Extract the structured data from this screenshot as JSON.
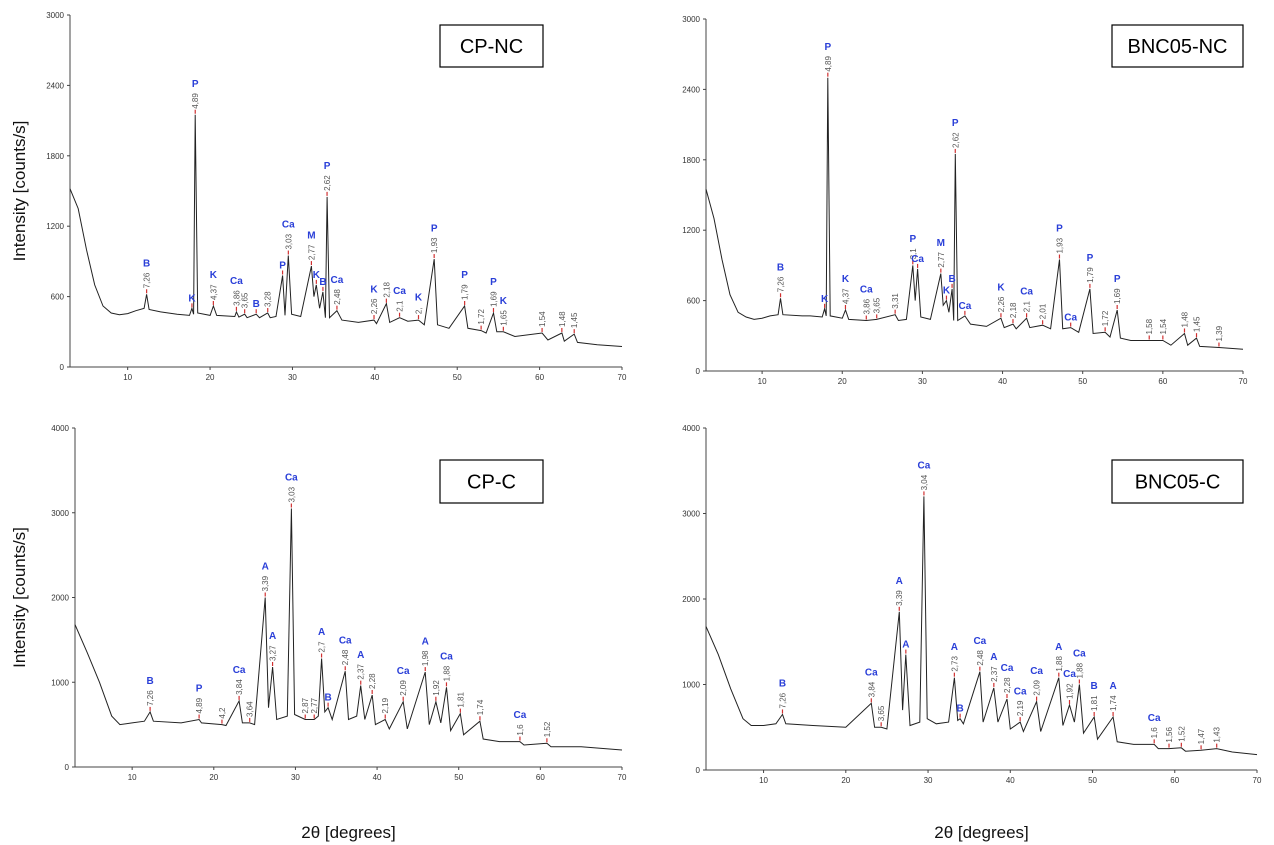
{
  "chart_data": [
    {
      "type": "line",
      "panel_label": "CP-NC",
      "ylabel": "Intensity [counts/s]",
      "color": "#222222",
      "xlim": [
        3,
        70
      ],
      "xticks": [
        10,
        20,
        30,
        40,
        50,
        60,
        70
      ],
      "ylim": [
        0,
        3000
      ],
      "yticks": [
        0,
        600,
        1200,
        1800,
        2400,
        3000
      ],
      "x": [
        3,
        4,
        5,
        6,
        7,
        8,
        9,
        10,
        11,
        12,
        12.3,
        12.6,
        14,
        16,
        17.5,
        17.8,
        18,
        18.2,
        18.5,
        20,
        20.4,
        20.8,
        23,
        23.2,
        23.5,
        24.2,
        24.5,
        25.6,
        26,
        27,
        27.3,
        28,
        28.8,
        29.1,
        29.5,
        29.9,
        31,
        32.3,
        32.6,
        32.9,
        33.3,
        33.7,
        34,
        34.2,
        34.5,
        35.4,
        36,
        38,
        39.9,
        40.2,
        41.4,
        41.8,
        43,
        44,
        45.3,
        46,
        47.2,
        47.6,
        49,
        50.9,
        51.3,
        52.9,
        53.5,
        54.4,
        54.8,
        55.6,
        57,
        60.3,
        61,
        62.7,
        63,
        64.2,
        64.6,
        67,
        70
      ],
      "values": [
        1520,
        1350,
        1000,
        700,
        520,
        460,
        445,
        455,
        480,
        500,
        620,
        490,
        470,
        450,
        440,
        500,
        450,
        2150,
        460,
        440,
        520,
        440,
        430,
        470,
        425,
        450,
        420,
        450,
        420,
        460,
        420,
        430,
        780,
        440,
        950,
        450,
        430,
        860,
        600,
        700,
        500,
        640,
        420,
        1450,
        420,
        480,
        400,
        380,
        400,
        370,
        540,
        380,
        420,
        390,
        400,
        360,
        920,
        360,
        330,
        520,
        330,
        310,
        290,
        460,
        300,
        300,
        260,
        290,
        230,
        290,
        220,
        280,
        210,
        190,
        175
      ],
      "annotations": [
        {
          "x": 12.3,
          "y": 620,
          "phase": "B",
          "label": "7,26"
        },
        {
          "x": 17.8,
          "y": 500,
          "phase": "K"
        },
        {
          "x": 18.2,
          "y": 2150,
          "phase": "P",
          "label": "4,89"
        },
        {
          "x": 20.4,
          "y": 520,
          "phase": "K",
          "label": "4,37"
        },
        {
          "x": 23.2,
          "y": 470,
          "phase": "Ca",
          "label": "3,86"
        },
        {
          "x": 24.2,
          "y": 450,
          "label": "3,65"
        },
        {
          "x": 25.6,
          "y": 450,
          "phase": "B"
        },
        {
          "x": 27,
          "y": 460,
          "label": "3,28"
        },
        {
          "x": 28.8,
          "y": 780,
          "phase": "P"
        },
        {
          "x": 29.5,
          "y": 950,
          "phase": "Ca",
          "label": "3,03"
        },
        {
          "x": 32.3,
          "y": 860,
          "phase": "M",
          "label": "2,77"
        },
        {
          "x": 32.9,
          "y": 700,
          "phase": "K"
        },
        {
          "x": 33.7,
          "y": 640,
          "phase": "B"
        },
        {
          "x": 34.2,
          "y": 1450,
          "phase": "P",
          "label": "2,62"
        },
        {
          "x": 35.4,
          "y": 480,
          "phase": "Ca",
          "label": "2,48"
        },
        {
          "x": 39.9,
          "y": 400,
          "phase": "K",
          "label": "2,26"
        },
        {
          "x": 41.4,
          "y": 540,
          "label": "2,18"
        },
        {
          "x": 43,
          "y": 420,
          "phase": "Ca",
          "label": "2,1"
        },
        {
          "x": 45.3,
          "y": 400,
          "phase": "K",
          "label": "2,"
        },
        {
          "x": 47.2,
          "y": 920,
          "phase": "P",
          "label": "1,93"
        },
        {
          "x": 50.9,
          "y": 520,
          "phase": "P",
          "label": "1,79"
        },
        {
          "x": 52.9,
          "y": 310,
          "label": "1,72"
        },
        {
          "x": 54.4,
          "y": 460,
          "phase": "P",
          "label": "1,69"
        },
        {
          "x": 55.6,
          "y": 300,
          "phase": "K",
          "label": "1,65"
        },
        {
          "x": 60.3,
          "y": 290,
          "label": "1,54"
        },
        {
          "x": 62.7,
          "y": 290,
          "label": "1,48"
        },
        {
          "x": 64.2,
          "y": 280,
          "label": "1,45"
        }
      ]
    },
    {
      "type": "line",
      "panel_label": "BNC05-NC",
      "color": "#222222",
      "xlim": [
        3,
        70
      ],
      "xticks": [
        10,
        20,
        30,
        40,
        50,
        60,
        70
      ],
      "ylim": [
        0,
        3000
      ],
      "yticks": [
        0,
        600,
        1200,
        1800,
        2400,
        3000
      ],
      "x": [
        3,
        4,
        5,
        6,
        7,
        8,
        9,
        10,
        11,
        12,
        12.3,
        12.6,
        15,
        16,
        17.5,
        17.8,
        18,
        18.2,
        18.5,
        20,
        20.4,
        20.8,
        23,
        24.3,
        26.6,
        27,
        28,
        28.8,
        29.1,
        29.4,
        29.8,
        31,
        32.3,
        32.6,
        33,
        33.3,
        33.7,
        33.9,
        34.1,
        34.4,
        35.3,
        36,
        38,
        39.8,
        40.2,
        41.3,
        41.7,
        43,
        43.4,
        45,
        46,
        47.1,
        47.5,
        48.5,
        49.5,
        50.9,
        51.3,
        52.8,
        53.4,
        54.3,
        54.7,
        56,
        58.3,
        60,
        61,
        62.7,
        63.1,
        64.2,
        64.6,
        67,
        70
      ],
      "values": [
        1550,
        1300,
        950,
        650,
        500,
        460,
        440,
        450,
        470,
        480,
        620,
        480,
        470,
        470,
        460,
        530,
        470,
        2500,
        470,
        450,
        520,
        440,
        430,
        440,
        480,
        430,
        440,
        900,
        600,
        870,
        460,
        440,
        830,
        560,
        600,
        500,
        700,
        430,
        1850,
        430,
        470,
        400,
        380,
        450,
        370,
        400,
        360,
        450,
        370,
        390,
        360,
        950,
        360,
        370,
        330,
        700,
        320,
        330,
        290,
        520,
        280,
        260,
        260,
        260,
        220,
        320,
        220,
        280,
        210,
        200,
        185
      ],
      "annotations": [
        {
          "x": 12.3,
          "y": 620,
          "phase": "B",
          "label": "7,26"
        },
        {
          "x": 17.8,
          "y": 530,
          "phase": "K"
        },
        {
          "x": 18.2,
          "y": 2500,
          "phase": "P",
          "label": "4,89"
        },
        {
          "x": 20.4,
          "y": 520,
          "phase": "K",
          "label": "4,37"
        },
        {
          "x": 23,
          "y": 430,
          "phase": "Ca",
          "label": "3,86"
        },
        {
          "x": 24.3,
          "y": 440,
          "label": "3,65"
        },
        {
          "x": 26.6,
          "y": 480,
          "label": "3,31"
        },
        {
          "x": 28.8,
          "y": 900,
          "phase": "P",
          "label": "3,1"
        },
        {
          "x": 29.4,
          "y": 870,
          "phase": "Ca"
        },
        {
          "x": 32.3,
          "y": 830,
          "phase": "M",
          "label": "2,77"
        },
        {
          "x": 33,
          "y": 600,
          "phase": "K"
        },
        {
          "x": 33.7,
          "y": 700,
          "phase": "B"
        },
        {
          "x": 34.1,
          "y": 1850,
          "phase": "P",
          "label": "2,62"
        },
        {
          "x": 35.3,
          "y": 470,
          "phase": "Ca"
        },
        {
          "x": 39.8,
          "y": 450,
          "phase": "K",
          "label": "2,26"
        },
        {
          "x": 41.3,
          "y": 400,
          "label": "2,18"
        },
        {
          "x": 43,
          "y": 450,
          "phase": "Ca",
          "label": "2,1"
        },
        {
          "x": 45,
          "y": 390,
          "label": "2,01"
        },
        {
          "x": 47.1,
          "y": 950,
          "phase": "P",
          "label": "1,93"
        },
        {
          "x": 48.5,
          "y": 370,
          "phase": "Ca"
        },
        {
          "x": 50.9,
          "y": 700,
          "phase": "P",
          "label": "1,79"
        },
        {
          "x": 52.8,
          "y": 330,
          "label": "1,72"
        },
        {
          "x": 54.3,
          "y": 520,
          "phase": "P",
          "label": "1,69"
        },
        {
          "x": 58.3,
          "y": 260,
          "label": "1,58"
        },
        {
          "x": 60,
          "y": 260,
          "label": "1,54"
        },
        {
          "x": 62.7,
          "y": 320,
          "label": "1,48"
        },
        {
          "x": 64.2,
          "y": 280,
          "label": "1,45"
        },
        {
          "x": 67,
          "y": 200,
          "label": "1,39"
        }
      ]
    },
    {
      "type": "line",
      "panel_label": "CP-C",
      "ylabel": "Intensity [counts/s]",
      "xlabel": "2θ [degrees]",
      "color": "#222222",
      "xlim": [
        3,
        70
      ],
      "xticks": [
        10,
        20,
        30,
        40,
        50,
        60,
        70
      ],
      "ylim": [
        0,
        4000
      ],
      "yticks": [
        0,
        1000,
        2000,
        3000,
        4000
      ],
      "x": [
        3,
        4.5,
        6,
        7.5,
        8.5,
        10,
        11.5,
        12.2,
        12.6,
        16,
        18.2,
        18.5,
        21,
        21.5,
        23.1,
        23.5,
        24.4,
        25,
        26.3,
        26.7,
        27.2,
        27.7,
        29,
        29.5,
        29.9,
        31.2,
        32.3,
        32.8,
        33.2,
        33.6,
        34,
        34.5,
        36.1,
        36.5,
        37.5,
        38,
        38.5,
        39.4,
        39.8,
        41,
        41.5,
        43.2,
        43.7,
        45.9,
        46.4,
        47.2,
        47.8,
        48.5,
        49,
        50.2,
        50.6,
        52.6,
        53,
        55,
        57.5,
        58,
        60.8,
        61.3,
        65,
        70
      ],
      "values": [
        1680,
        1350,
        1000,
        600,
        500,
        520,
        540,
        650,
        540,
        520,
        560,
        520,
        500,
        490,
        780,
        520,
        520,
        500,
        2000,
        700,
        1180,
        560,
        600,
        3050,
        620,
        560,
        560,
        600,
        1280,
        650,
        700,
        560,
        1130,
        560,
        600,
        960,
        560,
        850,
        500,
        560,
        450,
        770,
        450,
        1120,
        500,
        770,
        520,
        940,
        430,
        630,
        380,
        540,
        330,
        300,
        300,
        260,
        280,
        240,
        240,
        200
      ],
      "annotations": [
        {
          "x": 12.2,
          "y": 650,
          "phase": "B",
          "label": "7,26"
        },
        {
          "x": 18.2,
          "y": 560,
          "phase": "P",
          "label": "4,89"
        },
        {
          "x": 21,
          "y": 500,
          "label": "4,2"
        },
        {
          "x": 23.1,
          "y": 780,
          "phase": "Ca",
          "label": "3,84"
        },
        {
          "x": 24.4,
          "y": 520,
          "label": "3,64"
        },
        {
          "x": 26.3,
          "y": 2000,
          "phase": "A",
          "label": "3,39"
        },
        {
          "x": 27.2,
          "y": 1180,
          "phase": "A",
          "label": "3,27"
        },
        {
          "x": 29.5,
          "y": 3050,
          "phase": "Ca",
          "label": "3,03"
        },
        {
          "x": 31.2,
          "y": 560,
          "label": "2,87"
        },
        {
          "x": 32.3,
          "y": 560,
          "label": "2,77"
        },
        {
          "x": 33.2,
          "y": 1280,
          "phase": "A",
          "label": "2,7"
        },
        {
          "x": 34,
          "y": 700,
          "phase": "B"
        },
        {
          "x": 36.1,
          "y": 1130,
          "phase": "Ca",
          "label": "2,48"
        },
        {
          "x": 38,
          "y": 960,
          "phase": "A",
          "label": "2,37"
        },
        {
          "x": 39.4,
          "y": 850,
          "label": "2,28"
        },
        {
          "x": 41,
          "y": 560,
          "label": "2,19"
        },
        {
          "x": 43.2,
          "y": 770,
          "phase": "Ca",
          "label": "2,09"
        },
        {
          "x": 45.9,
          "y": 1120,
          "phase": "A",
          "label": "1,98"
        },
        {
          "x": 47.2,
          "y": 770,
          "label": "1,92"
        },
        {
          "x": 48.5,
          "y": 940,
          "phase": "Ca",
          "label": "1,88"
        },
        {
          "x": 50.2,
          "y": 630,
          "label": "1,81"
        },
        {
          "x": 52.6,
          "y": 540,
          "label": "1,74"
        },
        {
          "x": 57.5,
          "y": 300,
          "phase": "Ca",
          "label": "1,6"
        },
        {
          "x": 60.8,
          "y": 280,
          "label": "1,52"
        }
      ]
    },
    {
      "type": "line",
      "panel_label": "BNC05-C",
      "xlabel": "2θ [degrees]",
      "color": "#222222",
      "xlim": [
        3,
        70
      ],
      "xticks": [
        10,
        20,
        30,
        40,
        50,
        60,
        70
      ],
      "ylim": [
        0,
        4000
      ],
      "yticks": [
        0,
        1000,
        2000,
        3000,
        4000
      ],
      "x": [
        3,
        4.5,
        6,
        7.5,
        8.5,
        10,
        11.5,
        12.3,
        12.7,
        16,
        20,
        23.1,
        23.5,
        24.3,
        25,
        26.5,
        26.9,
        27.3,
        27.8,
        29,
        29.5,
        29.9,
        31,
        32.5,
        33.2,
        33.6,
        33.9,
        34.3,
        36.3,
        36.7,
        38,
        38.5,
        39.6,
        40,
        41.2,
        41.6,
        43.2,
        43.7,
        45.9,
        46.4,
        47.2,
        47.8,
        48.4,
        48.9,
        50.2,
        50.6,
        52.5,
        53,
        55,
        57.5,
        58,
        59.3,
        60.8,
        61.3,
        63.2,
        65.1,
        67,
        70
      ],
      "values": [
        1680,
        1350,
        950,
        600,
        520,
        520,
        540,
        650,
        540,
        520,
        500,
        780,
        500,
        500,
        480,
        1850,
        700,
        1350,
        520,
        560,
        3200,
        600,
        540,
        560,
        1080,
        580,
        600,
        540,
        1150,
        560,
        960,
        560,
        830,
        480,
        560,
        450,
        800,
        450,
        1080,
        520,
        760,
        560,
        1000,
        430,
        620,
        360,
        620,
        330,
        300,
        300,
        250,
        250,
        260,
        220,
        230,
        250,
        210,
        180
      ],
      "annotations": [
        {
          "x": 12.3,
          "y": 650,
          "phase": "B",
          "label": "7,26"
        },
        {
          "x": 23.1,
          "y": 780,
          "phase": "Ca",
          "label": "3,84"
        },
        {
          "x": 24.3,
          "y": 500,
          "label": "3,65"
        },
        {
          "x": 26.5,
          "y": 1850,
          "phase": "A",
          "label": "3,39"
        },
        {
          "x": 27.3,
          "y": 1350,
          "phase": "A"
        },
        {
          "x": 29.5,
          "y": 3200,
          "phase": "Ca",
          "label": "3,04"
        },
        {
          "x": 33.2,
          "y": 1080,
          "phase": "A",
          "label": "2,73"
        },
        {
          "x": 33.9,
          "y": 600,
          "phase": "B"
        },
        {
          "x": 36.3,
          "y": 1150,
          "phase": "Ca",
          "label": "2,48"
        },
        {
          "x": 38,
          "y": 960,
          "phase": "A",
          "label": "2,37"
        },
        {
          "x": 39.6,
          "y": 830,
          "phase": "Ca",
          "label": "2,28"
        },
        {
          "x": 41.2,
          "y": 560,
          "phase": "Ca",
          "label": "2,19"
        },
        {
          "x": 43.2,
          "y": 800,
          "phase": "Ca",
          "label": "2,09"
        },
        {
          "x": 45.9,
          "y": 1080,
          "phase": "A",
          "label": "1,88"
        },
        {
          "x": 47.2,
          "y": 760,
          "phase": "Ca",
          "label": "1,92"
        },
        {
          "x": 48.4,
          "y": 1000,
          "phase": "Ca",
          "label": "1,88"
        },
        {
          "x": 50.2,
          "y": 620,
          "phase": "B",
          "label": "1,81"
        },
        {
          "x": 52.5,
          "y": 620,
          "phase": "A",
          "label": "1,74"
        },
        {
          "x": 57.5,
          "y": 300,
          "phase": "Ca",
          "label": "1,6"
        },
        {
          "x": 59.3,
          "y": 250,
          "label": "1,56"
        },
        {
          "x": 60.8,
          "y": 260,
          "label": "1,52"
        },
        {
          "x": 63.2,
          "y": 230,
          "label": "1,47"
        },
        {
          "x": 65.1,
          "y": 250,
          "label": "1,43"
        }
      ]
    }
  ]
}
